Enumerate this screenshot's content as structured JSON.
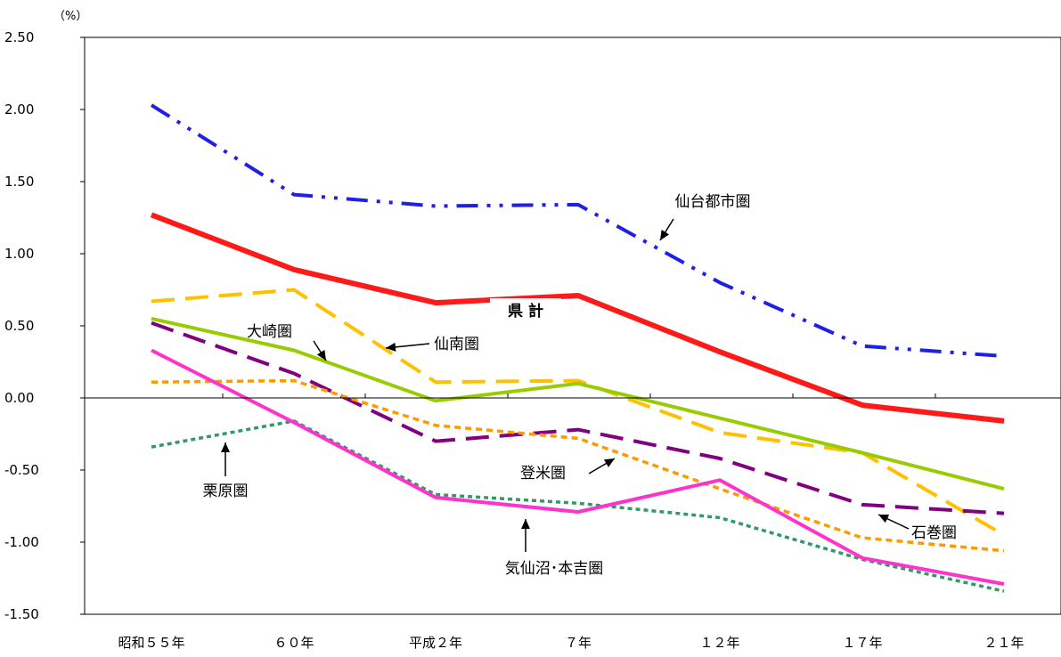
{
  "chart_data": {
    "type": "line",
    "unit": "（%）",
    "categories": [
      "昭和５５年",
      "６０年",
      "平成２年",
      "７年",
      "１２年",
      "１７年",
      "２１年"
    ],
    "ylim": [
      -1.5,
      2.5
    ],
    "yticks": [
      "2.50",
      "2.00",
      "1.50",
      "1.00",
      "0.50",
      "0.00",
      "-0.50",
      "-1.00",
      "-1.50"
    ],
    "series": [
      {
        "name": "仙台都市圏",
        "color": "#1f1fe8",
        "dash": "dashdotdot",
        "values": [
          2.03,
          1.41,
          1.33,
          1.34,
          0.8,
          0.36,
          0.29
        ]
      },
      {
        "name": "県 計",
        "color": "#ff1a1a",
        "dash": "solid",
        "values": [
          1.27,
          0.89,
          0.66,
          0.71,
          0.32,
          -0.05,
          -0.16
        ]
      },
      {
        "name": "仙南圏",
        "color": "#ffc000",
        "dash": "longdash",
        "values": [
          0.67,
          0.75,
          0.11,
          0.12,
          -0.24,
          -0.38,
          -0.95
        ]
      },
      {
        "name": "大崎圏",
        "color": "#99cc00",
        "dash": "solid",
        "values": [
          0.55,
          0.33,
          -0.02,
          0.1,
          -0.14,
          -0.38,
          -0.63
        ]
      },
      {
        "name": "石巻圏",
        "color": "#800080",
        "dash": "longdash",
        "values": [
          0.52,
          0.17,
          -0.3,
          -0.22,
          -0.42,
          -0.74,
          -0.8
        ]
      },
      {
        "name": "登米圏",
        "color": "#ff9900",
        "dash": "shortdash",
        "values": [
          0.11,
          0.12,
          -0.19,
          -0.28,
          -0.63,
          -0.97,
          -1.06
        ]
      },
      {
        "name": "栗原圏",
        "color": "#339966",
        "dash": "dotted",
        "values": [
          -0.34,
          -0.16,
          -0.67,
          -0.73,
          -0.83,
          -1.12,
          -1.34
        ]
      },
      {
        "name": "気仙沼･本吉圏",
        "color": "#ff33cc",
        "dash": "solid",
        "values": [
          0.33,
          -0.17,
          -0.69,
          -0.79,
          -0.57,
          -1.11,
          -1.29
        ]
      }
    ]
  }
}
